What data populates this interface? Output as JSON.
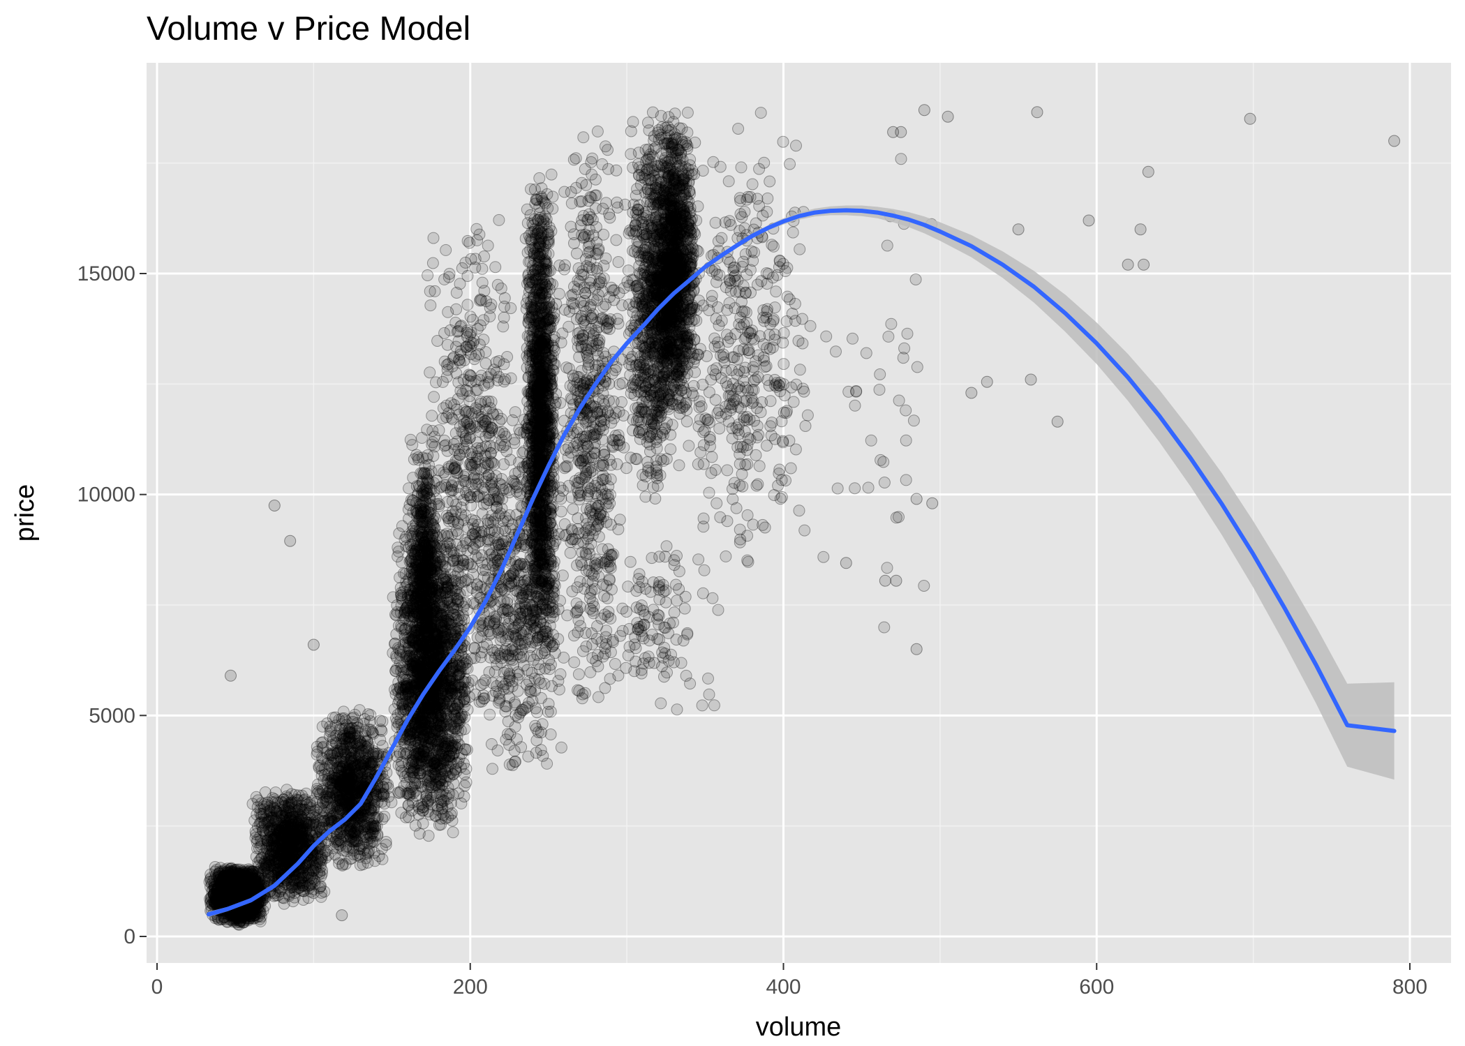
{
  "chart_data": {
    "type": "scatter",
    "title": "Volume v Price Model",
    "xlabel": "volume",
    "ylabel": "price",
    "xlim": [
      0,
      800
    ],
    "ylim": [
      0,
      18823
    ],
    "x_ticks": [
      0,
      200,
      400,
      600,
      800
    ],
    "y_ticks": [
      0,
      5000,
      10000,
      15000
    ],
    "grid": true,
    "legend": "none",
    "point_color": "#000000",
    "point_alpha": 0.12,
    "panel_background": "#e5e5e5",
    "smooth": {
      "color": "#3366ff",
      "band_color": "#bdbdbd",
      "x": [
        33,
        45,
        60,
        75,
        90,
        100,
        110,
        120,
        130,
        140,
        150,
        160,
        170,
        180,
        190,
        200,
        210,
        220,
        230,
        240,
        250,
        260,
        270,
        280,
        290,
        300,
        310,
        320,
        330,
        340,
        350,
        360,
        370,
        380,
        390,
        400,
        410,
        420,
        430,
        440,
        450,
        460,
        470,
        480,
        490,
        500,
        520,
        540,
        560,
        580,
        600,
        620,
        640,
        660,
        680,
        700,
        720,
        740,
        760,
        790
      ],
      "y": [
        500,
        620,
        820,
        1150,
        1650,
        2050,
        2380,
        2650,
        3000,
        3600,
        4250,
        4900,
        5480,
        6000,
        6480,
        7000,
        7600,
        8300,
        9100,
        9900,
        10650,
        11350,
        11950,
        12500,
        13000,
        13420,
        13800,
        14200,
        14550,
        14850,
        15150,
        15400,
        15630,
        15850,
        16030,
        16180,
        16300,
        16380,
        16420,
        16430,
        16420,
        16380,
        16310,
        16220,
        16100,
        15950,
        15620,
        15200,
        14700,
        14100,
        13420,
        12650,
        11780,
        10820,
        9780,
        8650,
        7430,
        6150,
        4780,
        4650
      ],
      "upper": [
        560,
        670,
        870,
        1200,
        1700,
        2100,
        2430,
        2700,
        3050,
        3650,
        4300,
        4950,
        5530,
        6050,
        6530,
        7050,
        7650,
        8350,
        9150,
        9950,
        10700,
        11400,
        12000,
        12550,
        13050,
        13470,
        13850,
        14250,
        14600,
        14900,
        15200,
        15450,
        15680,
        15900,
        16090,
        16250,
        16380,
        16470,
        16520,
        16540,
        16540,
        16510,
        16460,
        16390,
        16290,
        16160,
        15870,
        15500,
        15060,
        14520,
        13890,
        13180,
        12370,
        11460,
        10480,
        9400,
        8240,
        7020,
        5720,
        5750
      ],
      "lower": [
        440,
        570,
        770,
        1100,
        1600,
        2000,
        2330,
        2600,
        2950,
        3550,
        4200,
        4850,
        5430,
        5950,
        6430,
        6950,
        7550,
        8250,
        9050,
        9850,
        10600,
        11300,
        11900,
        12450,
        12950,
        13370,
        13750,
        14150,
        14500,
        14800,
        15100,
        15350,
        15580,
        15800,
        15970,
        16110,
        16220,
        16290,
        16320,
        16320,
        16300,
        16250,
        16160,
        16050,
        15910,
        15740,
        15370,
        14900,
        14340,
        13680,
        12950,
        12120,
        11190,
        10180,
        9080,
        7900,
        6620,
        5280,
        3840,
        3550
      ]
    },
    "point_clusters": [
      {
        "x": [
          33,
          70
        ],
        "y": [
          250,
          1600
        ],
        "n": 1400
      },
      {
        "x": [
          60,
          110
        ],
        "y": [
          700,
          3400
        ],
        "n": 900
      },
      {
        "x": [
          100,
          150
        ],
        "y": [
          1500,
          5200
        ],
        "n": 900
      },
      {
        "x": [
          150,
          200
        ],
        "y": [
          2200,
          9500
        ],
        "n": 1900
      },
      {
        "x": [
          160,
          180
        ],
        "y": [
          6000,
          11500
        ],
        "n": 400
      },
      {
        "x": [
          170,
          230
        ],
        "y": [
          5000,
          16500
        ],
        "n": 500
      },
      {
        "x": [
          200,
          260
        ],
        "y": [
          3500,
          12000
        ],
        "n": 500
      },
      {
        "x": [
          235,
          255
        ],
        "y": [
          6000,
          17500
        ],
        "n": 1400
      },
      {
        "x": [
          255,
          300
        ],
        "y": [
          5000,
          18500
        ],
        "n": 600
      },
      {
        "x": [
          300,
          330
        ],
        "y": [
          9500,
          18700
        ],
        "n": 600
      },
      {
        "x": [
          315,
          345
        ],
        "y": [
          11500,
          18700
        ],
        "n": 1300
      },
      {
        "x": [
          330,
          420
        ],
        "y": [
          8000,
          18700
        ],
        "n": 400
      },
      {
        "x": [
          280,
          360
        ],
        "y": [
          5000,
          9000
        ],
        "n": 120
      },
      {
        "x": [
          420,
          500
        ],
        "y": [
          6500,
          18500
        ],
        "n": 40
      }
    ],
    "outliers": [
      [
        47,
        5900
      ],
      [
        75,
        9750
      ],
      [
        85,
        8950
      ],
      [
        100,
        6600
      ],
      [
        118,
        480
      ],
      [
        470,
        18200
      ],
      [
        475,
        18200
      ],
      [
        490,
        18700
      ],
      [
        505,
        18550
      ],
      [
        520,
        12300
      ],
      [
        530,
        12550
      ],
      [
        550,
        16000
      ],
      [
        558,
        12600
      ],
      [
        562,
        18650
      ],
      [
        575,
        11650
      ],
      [
        595,
        16200
      ],
      [
        620,
        15200
      ],
      [
        628,
        16000
      ],
      [
        630,
        15200
      ],
      [
        633,
        17300
      ],
      [
        698,
        18500
      ],
      [
        790,
        18000
      ],
      [
        485,
        6500
      ],
      [
        465,
        8050
      ],
      [
        472,
        8050
      ],
      [
        440,
        8450
      ],
      [
        485,
        9900
      ],
      [
        495,
        9800
      ]
    ]
  }
}
